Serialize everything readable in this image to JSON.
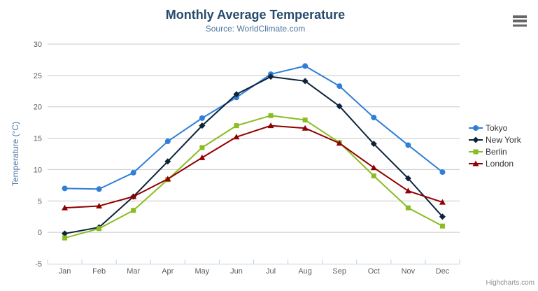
{
  "header": {
    "title": "Monthly Average Temperature",
    "subtitle": "Source: WorldClimate.com"
  },
  "credits": {
    "label": "Highcharts.com"
  },
  "menu": {
    "icon": "hamburger-icon"
  },
  "chart_data": {
    "type": "line",
    "title": "Monthly Average Temperature",
    "subtitle": "Source: WorldClimate.com",
    "xlabel": "",
    "ylabel": "Temperature (°C)",
    "ylim": [
      -5,
      30
    ],
    "ytick_step": 5,
    "grid": true,
    "legend_position": "right",
    "categories": [
      "Jan",
      "Feb",
      "Mar",
      "Apr",
      "May",
      "Jun",
      "Jul",
      "Aug",
      "Sep",
      "Oct",
      "Nov",
      "Dec"
    ],
    "series": [
      {
        "name": "Tokyo",
        "marker": "circle",
        "color": "#2f7ed8",
        "values": [
          7.0,
          6.9,
          9.5,
          14.5,
          18.2,
          21.5,
          25.2,
          26.5,
          23.3,
          18.3,
          13.9,
          9.6
        ]
      },
      {
        "name": "New York",
        "marker": "diamond",
        "color": "#0d233a",
        "values": [
          -0.2,
          0.8,
          5.7,
          11.3,
          17.0,
          22.0,
          24.8,
          24.1,
          20.1,
          14.1,
          8.6,
          2.5
        ]
      },
      {
        "name": "Berlin",
        "marker": "square",
        "color": "#8bbc21",
        "values": [
          -0.9,
          0.6,
          3.5,
          8.4,
          13.5,
          17.0,
          18.6,
          17.9,
          14.3,
          9.0,
          3.9,
          1.0
        ]
      },
      {
        "name": "London",
        "marker": "triangle",
        "color": "#910000",
        "values": [
          3.9,
          4.2,
          5.7,
          8.5,
          11.9,
          15.2,
          17.0,
          16.6,
          14.2,
          10.3,
          6.6,
          4.8
        ]
      }
    ],
    "colors": {
      "title": "#274b6d",
      "subtitle": "#4d759e",
      "axis_title": "#4d759e",
      "axis_labels": "#606060",
      "gridline": "#c8c8c8",
      "axis_line": "#c0d0e0",
      "legend_text": "#333333",
      "credits_text": "#909090"
    }
  }
}
